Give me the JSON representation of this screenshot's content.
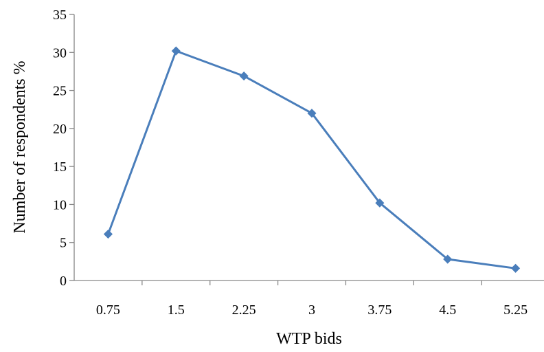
{
  "chart_data": {
    "type": "line",
    "title": "",
    "xlabel": "WTP bids",
    "ylabel": "Number of respondents %",
    "categories": [
      "0.75",
      "1.5",
      "2.25",
      "3",
      "3.75",
      "4.5",
      "5.25"
    ],
    "series": [
      {
        "values": [
          6.1,
          30.2,
          26.9,
          22.0,
          10.2,
          2.8,
          1.6
        ],
        "color": "#4a7ebb",
        "marker": "diamond"
      }
    ],
    "ylim": [
      0,
      35
    ],
    "yticks": [
      0,
      5,
      10,
      15,
      20,
      25,
      30,
      35
    ],
    "grid": false,
    "legend": "none"
  }
}
